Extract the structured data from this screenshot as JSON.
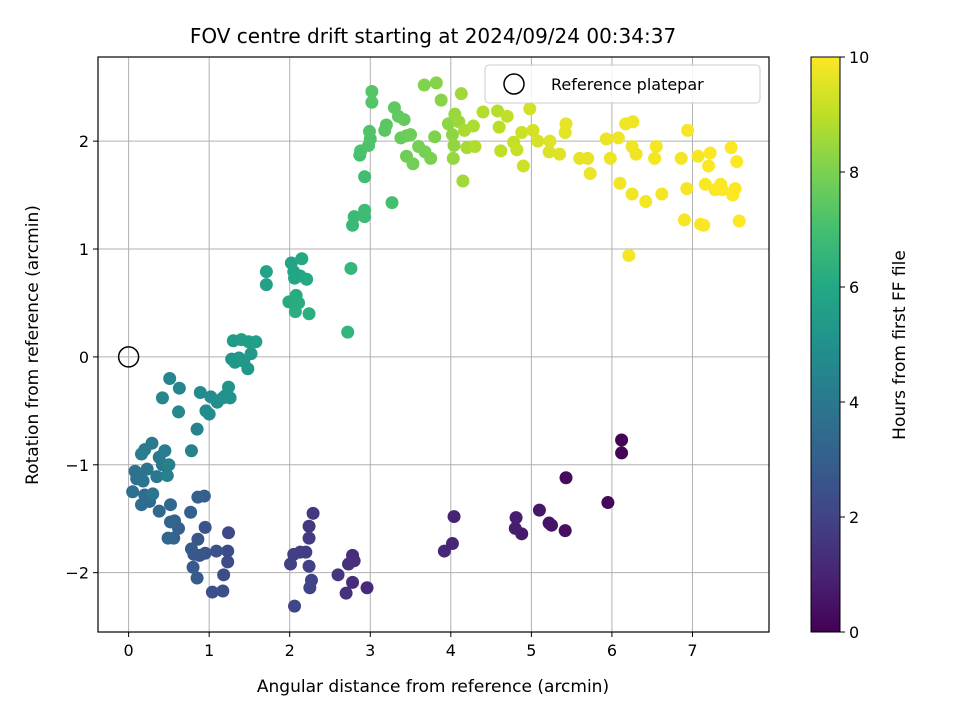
{
  "chart_data": {
    "type": "scatter",
    "title": "FOV centre drift starting at 2024/09/24 00:34:37",
    "xlabel": "Angular distance from reference (arcmin)",
    "ylabel": "Rotation from reference (arcmin)",
    "xlim": [
      -0.38,
      7.95
    ],
    "ylim": [
      -2.55,
      2.78
    ],
    "xticks": [
      "0",
      "1",
      "2",
      "3",
      "4",
      "5",
      "6",
      "7"
    ],
    "yticks": [
      "−2",
      "−1",
      "0",
      "1",
      "2"
    ],
    "grid": true,
    "legend": {
      "position": "top-right",
      "entries": [
        "Reference platepar"
      ]
    },
    "reference_point": {
      "x": 0,
      "y": 0
    },
    "colorbar": {
      "label": "Hours from first FF file",
      "range": [
        0,
        10
      ],
      "ticks": [
        "0",
        "2",
        "4",
        "6",
        "8",
        "10"
      ],
      "colormap": "viridis"
    },
    "points": [
      {
        "x": 6.12,
        "y": -0.77,
        "c": 0.05
      },
      {
        "x": 6.12,
        "y": -0.89,
        "c": 0.1
      },
      {
        "x": 5.95,
        "y": -1.35,
        "c": 0.2
      },
      {
        "x": 5.43,
        "y": -1.12,
        "c": 0.3
      },
      {
        "x": 5.42,
        "y": -1.61,
        "c": 0.4
      },
      {
        "x": 5.25,
        "y": -1.56,
        "c": 0.5
      },
      {
        "x": 5.22,
        "y": -1.54,
        "c": 0.55
      },
      {
        "x": 5.1,
        "y": -1.42,
        "c": 0.6
      },
      {
        "x": 4.88,
        "y": -1.64,
        "c": 0.7
      },
      {
        "x": 4.8,
        "y": -1.59,
        "c": 0.8
      },
      {
        "x": 4.81,
        "y": -1.49,
        "c": 0.85
      },
      {
        "x": 4.04,
        "y": -1.48,
        "c": 0.95
      },
      {
        "x": 4.02,
        "y": -1.73,
        "c": 1.05
      },
      {
        "x": 3.92,
        "y": -1.8,
        "c": 1.1
      },
      {
        "x": 2.96,
        "y": -2.14,
        "c": 1.2
      },
      {
        "x": 2.78,
        "y": -2.09,
        "c": 1.25
      },
      {
        "x": 2.78,
        "y": -1.84,
        "c": 1.3
      },
      {
        "x": 2.8,
        "y": -1.89,
        "c": 1.35
      },
      {
        "x": 2.73,
        "y": -1.92,
        "c": 1.4
      },
      {
        "x": 2.7,
        "y": -2.19,
        "c": 1.45
      },
      {
        "x": 2.6,
        "y": -2.02,
        "c": 1.5
      },
      {
        "x": 2.29,
        "y": -1.45,
        "c": 1.6
      },
      {
        "x": 2.24,
        "y": -1.57,
        "c": 1.65
      },
      {
        "x": 2.24,
        "y": -1.68,
        "c": 1.7
      },
      {
        "x": 2.2,
        "y": -1.81,
        "c": 1.75
      },
      {
        "x": 2.13,
        "y": -1.81,
        "c": 1.8
      },
      {
        "x": 2.05,
        "y": -1.83,
        "c": 1.85
      },
      {
        "x": 2.01,
        "y": -1.92,
        "c": 1.9
      },
      {
        "x": 2.24,
        "y": -1.94,
        "c": 1.95
      },
      {
        "x": 2.27,
        "y": -2.07,
        "c": 2.0
      },
      {
        "x": 2.25,
        "y": -2.14,
        "c": 2.05
      },
      {
        "x": 2.06,
        "y": -2.31,
        "c": 2.1
      },
      {
        "x": 1.24,
        "y": -1.63,
        "c": 2.2
      },
      {
        "x": 1.23,
        "y": -1.8,
        "c": 2.25
      },
      {
        "x": 1.23,
        "y": -1.9,
        "c": 2.3
      },
      {
        "x": 1.18,
        "y": -2.02,
        "c": 2.35
      },
      {
        "x": 1.17,
        "y": -2.17,
        "c": 2.4
      },
      {
        "x": 1.04,
        "y": -2.18,
        "c": 2.45
      },
      {
        "x": 1.09,
        "y": -1.8,
        "c": 2.5
      },
      {
        "x": 0.95,
        "y": -1.58,
        "c": 2.55
      },
      {
        "x": 0.95,
        "y": -1.82,
        "c": 2.6
      },
      {
        "x": 0.88,
        "y": -1.84,
        "c": 2.65
      },
      {
        "x": 0.86,
        "y": -1.69,
        "c": 2.7
      },
      {
        "x": 0.81,
        "y": -1.83,
        "c": 2.75
      },
      {
        "x": 0.78,
        "y": -1.78,
        "c": 2.8
      },
      {
        "x": 0.8,
        "y": -1.95,
        "c": 2.85
      },
      {
        "x": 0.85,
        "y": -2.05,
        "c": 2.9
      },
      {
        "x": 0.94,
        "y": -1.29,
        "c": 2.95
      },
      {
        "x": 0.86,
        "y": -1.3,
        "c": 3.0
      },
      {
        "x": 0.77,
        "y": -1.44,
        "c": 3.05
      },
      {
        "x": 0.62,
        "y": -1.59,
        "c": 3.1
      },
      {
        "x": 0.57,
        "y": -1.52,
        "c": 3.15
      },
      {
        "x": 0.56,
        "y": -1.68,
        "c": 3.2
      },
      {
        "x": 0.52,
        "y": -1.53,
        "c": 3.25
      },
      {
        "x": 0.49,
        "y": -1.68,
        "c": 3.3
      },
      {
        "x": 0.52,
        "y": -1.37,
        "c": 3.35
      },
      {
        "x": 0.38,
        "y": -1.43,
        "c": 3.4
      },
      {
        "x": 0.26,
        "y": -1.34,
        "c": 3.45
      },
      {
        "x": 0.2,
        "y": -1.28,
        "c": 3.5
      },
      {
        "x": 0.16,
        "y": -1.37,
        "c": 3.55
      },
      {
        "x": 0.05,
        "y": -1.25,
        "c": 3.6
      },
      {
        "x": 0.1,
        "y": -1.13,
        "c": 3.65
      },
      {
        "x": 0.08,
        "y": -1.06,
        "c": 3.7
      },
      {
        "x": 0.13,
        "y": -1.09,
        "c": 3.75
      },
      {
        "x": 0.18,
        "y": -1.15,
        "c": 3.8
      },
      {
        "x": 0.23,
        "y": -1.04,
        "c": 3.85
      },
      {
        "x": 0.3,
        "y": -1.27,
        "c": 3.9
      },
      {
        "x": 0.35,
        "y": -1.11,
        "c": 3.95
      },
      {
        "x": 0.42,
        "y": -1.0,
        "c": 4.0
      },
      {
        "x": 0.38,
        "y": -0.93,
        "c": 4.05
      },
      {
        "x": 0.29,
        "y": -0.8,
        "c": 4.1
      },
      {
        "x": 0.2,
        "y": -0.86,
        "c": 4.15
      },
      {
        "x": 0.16,
        "y": -0.9,
        "c": 4.2
      },
      {
        "x": 0.45,
        "y": -0.87,
        "c": 4.25
      },
      {
        "x": 0.48,
        "y": -1.1,
        "c": 4.3
      },
      {
        "x": 0.5,
        "y": -1.0,
        "c": 4.35
      },
      {
        "x": 0.78,
        "y": -0.87,
        "c": 4.4
      },
      {
        "x": 0.85,
        "y": -0.67,
        "c": 4.45
      },
      {
        "x": 0.42,
        "y": -0.38,
        "c": 4.5
      },
      {
        "x": 0.51,
        "y": -0.2,
        "c": 4.55
      },
      {
        "x": 0.63,
        "y": -0.29,
        "c": 4.6
      },
      {
        "x": 0.62,
        "y": -0.51,
        "c": 4.65
      },
      {
        "x": 0.89,
        "y": -0.33,
        "c": 4.7
      },
      {
        "x": 0.96,
        "y": -0.5,
        "c": 4.75
      },
      {
        "x": 1.0,
        "y": -0.53,
        "c": 4.8
      },
      {
        "x": 1.02,
        "y": -0.37,
        "c": 4.85
      },
      {
        "x": 1.1,
        "y": -0.42,
        "c": 4.9
      },
      {
        "x": 1.17,
        "y": -0.38,
        "c": 4.95
      },
      {
        "x": 1.2,
        "y": -0.36,
        "c": 5.0
      },
      {
        "x": 1.26,
        "y": -0.38,
        "c": 5.05
      },
      {
        "x": 1.24,
        "y": -0.28,
        "c": 5.1
      },
      {
        "x": 1.28,
        "y": -0.02,
        "c": 5.15
      },
      {
        "x": 1.32,
        "y": -0.05,
        "c": 5.2
      },
      {
        "x": 1.37,
        "y": -0.01,
        "c": 5.25
      },
      {
        "x": 1.43,
        "y": -0.04,
        "c": 5.3
      },
      {
        "x": 1.48,
        "y": -0.11,
        "c": 5.35
      },
      {
        "x": 1.52,
        "y": 0.03,
        "c": 5.4
      },
      {
        "x": 1.3,
        "y": 0.15,
        "c": 5.45
      },
      {
        "x": 1.4,
        "y": 0.16,
        "c": 5.5
      },
      {
        "x": 1.49,
        "y": 0.14,
        "c": 5.55
      },
      {
        "x": 1.58,
        "y": 0.14,
        "c": 5.6
      },
      {
        "x": 1.71,
        "y": 0.67,
        "c": 5.7
      },
      {
        "x": 1.71,
        "y": 0.79,
        "c": 5.75
      },
      {
        "x": 2.02,
        "y": 0.87,
        "c": 5.8
      },
      {
        "x": 2.05,
        "y": 0.79,
        "c": 5.85
      },
      {
        "x": 2.06,
        "y": 0.73,
        "c": 5.9
      },
      {
        "x": 2.13,
        "y": 0.75,
        "c": 5.95
      },
      {
        "x": 2.15,
        "y": 0.91,
        "c": 6.0
      },
      {
        "x": 2.21,
        "y": 0.72,
        "c": 6.05
      },
      {
        "x": 1.99,
        "y": 0.51,
        "c": 6.1
      },
      {
        "x": 2.08,
        "y": 0.57,
        "c": 6.15
      },
      {
        "x": 2.11,
        "y": 0.5,
        "c": 6.2
      },
      {
        "x": 2.07,
        "y": 0.42,
        "c": 6.25
      },
      {
        "x": 2.24,
        "y": 0.4,
        "c": 6.3
      },
      {
        "x": 2.72,
        "y": 0.23,
        "c": 6.5
      },
      {
        "x": 2.76,
        "y": 0.82,
        "c": 6.6
      },
      {
        "x": 2.78,
        "y": 1.22,
        "c": 6.7
      },
      {
        "x": 2.8,
        "y": 1.3,
        "c": 6.75
      },
      {
        "x": 2.93,
        "y": 1.3,
        "c": 6.8
      },
      {
        "x": 2.93,
        "y": 1.36,
        "c": 6.85
      },
      {
        "x": 2.93,
        "y": 1.67,
        "c": 6.9
      },
      {
        "x": 3.27,
        "y": 1.43,
        "c": 7.0
      },
      {
        "x": 2.87,
        "y": 1.87,
        "c": 7.05
      },
      {
        "x": 2.88,
        "y": 1.91,
        "c": 7.1
      },
      {
        "x": 2.98,
        "y": 1.96,
        "c": 7.15
      },
      {
        "x": 3.0,
        "y": 2.02,
        "c": 7.2
      },
      {
        "x": 2.99,
        "y": 2.09,
        "c": 7.25
      },
      {
        "x": 3.02,
        "y": 2.36,
        "c": 7.3
      },
      {
        "x": 3.02,
        "y": 2.46,
        "c": 7.35
      },
      {
        "x": 3.18,
        "y": 2.1,
        "c": 7.4
      },
      {
        "x": 3.2,
        "y": 2.15,
        "c": 7.45
      },
      {
        "x": 3.3,
        "y": 2.31,
        "c": 7.5
      },
      {
        "x": 3.35,
        "y": 2.23,
        "c": 7.55
      },
      {
        "x": 3.42,
        "y": 2.2,
        "c": 7.6
      },
      {
        "x": 3.38,
        "y": 2.03,
        "c": 7.65
      },
      {
        "x": 3.45,
        "y": 2.05,
        "c": 7.7
      },
      {
        "x": 3.5,
        "y": 2.06,
        "c": 7.75
      },
      {
        "x": 3.45,
        "y": 1.86,
        "c": 7.8
      },
      {
        "x": 3.53,
        "y": 1.79,
        "c": 7.85
      },
      {
        "x": 3.6,
        "y": 1.95,
        "c": 7.9
      },
      {
        "x": 3.68,
        "y": 1.9,
        "c": 7.95
      },
      {
        "x": 3.75,
        "y": 1.84,
        "c": 8.0
      },
      {
        "x": 3.8,
        "y": 2.04,
        "c": 8.05
      },
      {
        "x": 3.67,
        "y": 2.52,
        "c": 8.1
      },
      {
        "x": 3.82,
        "y": 2.54,
        "c": 8.15
      },
      {
        "x": 3.88,
        "y": 2.38,
        "c": 8.2
      },
      {
        "x": 3.97,
        "y": 2.16,
        "c": 8.25
      },
      {
        "x": 4.02,
        "y": 2.06,
        "c": 8.3
      },
      {
        "x": 4.04,
        "y": 1.96,
        "c": 8.35
      },
      {
        "x": 4.03,
        "y": 1.84,
        "c": 8.4
      },
      {
        "x": 4.05,
        "y": 2.25,
        "c": 8.45
      },
      {
        "x": 4.1,
        "y": 2.18,
        "c": 8.5
      },
      {
        "x": 4.13,
        "y": 2.44,
        "c": 8.55
      },
      {
        "x": 4.15,
        "y": 1.63,
        "c": 8.6
      },
      {
        "x": 4.2,
        "y": 1.94,
        "c": 8.65
      },
      {
        "x": 4.17,
        "y": 2.1,
        "c": 8.7
      },
      {
        "x": 4.28,
        "y": 2.14,
        "c": 8.75
      },
      {
        "x": 4.3,
        "y": 1.95,
        "c": 8.8
      },
      {
        "x": 4.4,
        "y": 2.27,
        "c": 8.85
      },
      {
        "x": 4.58,
        "y": 2.28,
        "c": 8.9
      },
      {
        "x": 4.6,
        "y": 2.13,
        "c": 8.95
      },
      {
        "x": 4.62,
        "y": 1.91,
        "c": 9.0
      },
      {
        "x": 4.7,
        "y": 2.23,
        "c": 9.05
      },
      {
        "x": 4.78,
        "y": 1.99,
        "c": 9.1
      },
      {
        "x": 4.82,
        "y": 1.92,
        "c": 9.15
      },
      {
        "x": 4.88,
        "y": 2.08,
        "c": 9.2
      },
      {
        "x": 4.9,
        "y": 1.77,
        "c": 9.25
      },
      {
        "x": 4.98,
        "y": 2.3,
        "c": 9.3
      },
      {
        "x": 5.02,
        "y": 2.1,
        "c": 9.35
      },
      {
        "x": 5.08,
        "y": 2.0,
        "c": 9.4
      },
      {
        "x": 5.22,
        "y": 1.9,
        "c": 9.45
      },
      {
        "x": 5.23,
        "y": 2.0,
        "c": 9.5
      },
      {
        "x": 5.35,
        "y": 1.88,
        "c": 9.55
      },
      {
        "x": 5.42,
        "y": 2.08,
        "c": 9.6
      },
      {
        "x": 5.43,
        "y": 2.16,
        "c": 9.62
      },
      {
        "x": 5.6,
        "y": 1.84,
        "c": 9.65
      },
      {
        "x": 5.7,
        "y": 1.84,
        "c": 9.67
      },
      {
        "x": 5.73,
        "y": 1.7,
        "c": 9.7
      },
      {
        "x": 5.93,
        "y": 2.02,
        "c": 9.72
      },
      {
        "x": 5.98,
        "y": 1.84,
        "c": 9.74
      },
      {
        "x": 6.08,
        "y": 2.03,
        "c": 9.76
      },
      {
        "x": 6.17,
        "y": 2.16,
        "c": 9.77
      },
      {
        "x": 6.26,
        "y": 2.18,
        "c": 9.78
      },
      {
        "x": 6.25,
        "y": 1.95,
        "c": 9.79
      },
      {
        "x": 6.3,
        "y": 1.88,
        "c": 9.8
      },
      {
        "x": 6.1,
        "y": 1.61,
        "c": 9.81
      },
      {
        "x": 6.25,
        "y": 1.51,
        "c": 9.82
      },
      {
        "x": 6.42,
        "y": 1.44,
        "c": 9.83
      },
      {
        "x": 6.53,
        "y": 1.84,
        "c": 9.84
      },
      {
        "x": 6.55,
        "y": 1.95,
        "c": 9.85
      },
      {
        "x": 6.62,
        "y": 1.51,
        "c": 9.86
      },
      {
        "x": 6.21,
        "y": 0.94,
        "c": 9.87
      },
      {
        "x": 6.86,
        "y": 1.84,
        "c": 9.88
      },
      {
        "x": 6.9,
        "y": 1.27,
        "c": 9.89
      },
      {
        "x": 6.93,
        "y": 1.56,
        "c": 9.9
      },
      {
        "x": 6.94,
        "y": 2.1,
        "c": 9.91
      },
      {
        "x": 7.07,
        "y": 1.86,
        "c": 9.92
      },
      {
        "x": 7.1,
        "y": 1.23,
        "c": 9.93
      },
      {
        "x": 7.14,
        "y": 1.22,
        "c": 9.94
      },
      {
        "x": 7.16,
        "y": 1.6,
        "c": 9.95
      },
      {
        "x": 7.2,
        "y": 1.77,
        "c": 9.96
      },
      {
        "x": 7.22,
        "y": 1.89,
        "c": 9.97
      },
      {
        "x": 7.28,
        "y": 1.55,
        "c": 9.97
      },
      {
        "x": 7.35,
        "y": 1.6,
        "c": 9.98
      },
      {
        "x": 7.37,
        "y": 1.55,
        "c": 9.98
      },
      {
        "x": 7.48,
        "y": 1.94,
        "c": 9.99
      },
      {
        "x": 7.5,
        "y": 1.5,
        "c": 9.99
      },
      {
        "x": 7.53,
        "y": 1.56,
        "c": 9.99
      },
      {
        "x": 7.55,
        "y": 1.81,
        "c": 10.0
      },
      {
        "x": 7.58,
        "y": 1.26,
        "c": 10.0
      }
    ]
  }
}
